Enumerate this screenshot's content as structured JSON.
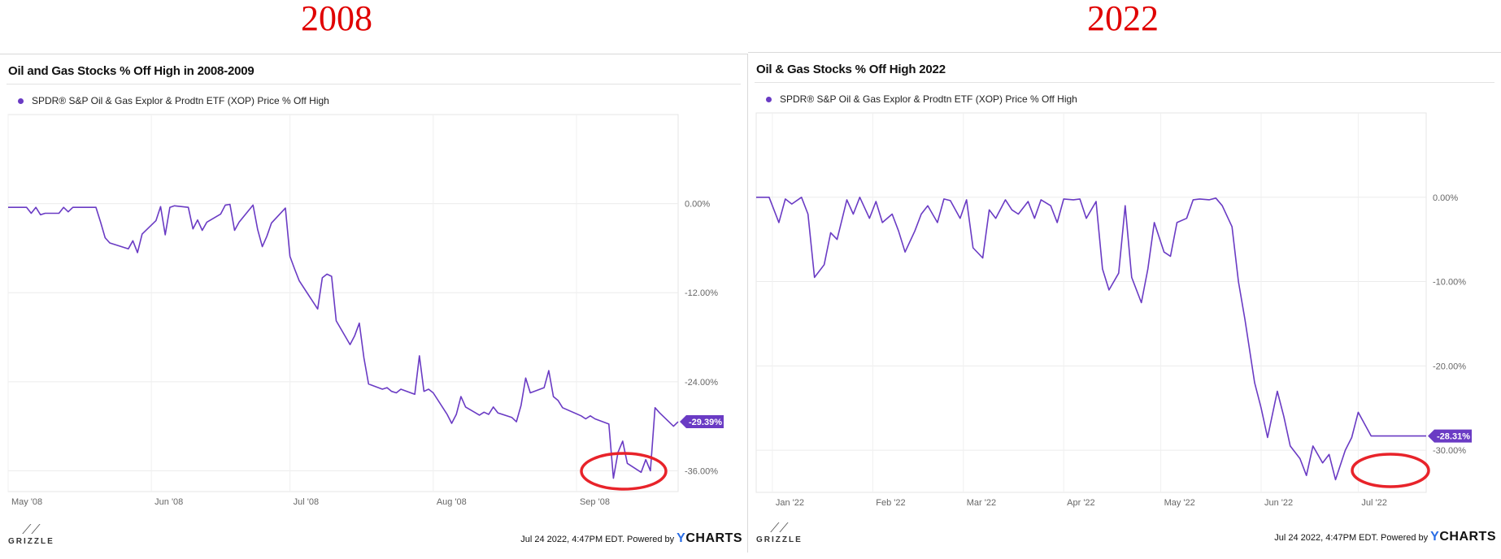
{
  "headers": {
    "left": "2008",
    "right": "2022"
  },
  "footer": {
    "logo_text": "GRIZZLE",
    "note": "Jul 24 2022, 4:47PM EDT. Powered by",
    "brand_y": "Y",
    "brand_rest": "CHARTS"
  },
  "colors": {
    "line": "#6a3bc4",
    "highlight": "#e8232a",
    "year": "#e00000"
  },
  "chart_data": [
    {
      "type": "line",
      "title": "Oil and Gas Stocks % Off High in 2008-2009",
      "legend": "SPDR® S&P Oil & Gas Explor & Prodtn ETF (XOP) Price % Off High",
      "x_start": "2008-05-01",
      "x_tick_labels": [
        "May '08",
        "Jun '08",
        "Jul '08",
        "Aug '08",
        "Sep '08"
      ],
      "x_tick_dates": [
        "2008-05-01",
        "2008-06-01",
        "2008-07-01",
        "2008-08-01",
        "2008-09-01"
      ],
      "y_ticks": [
        0,
        -12,
        -24,
        -36
      ],
      "y_tick_labels": [
        "0.00%",
        "-12.00%",
        "-24.00%",
        "-36.00%"
      ],
      "ylim": [
        -38.8,
        12.0
      ],
      "xlim": [
        "2008-05-01",
        "2008-09-23"
      ],
      "last_value_label": "-29.39%",
      "last_value": -29.39,
      "x": [
        "2008-05-01",
        "2008-05-02",
        "2008-05-05",
        "2008-05-06",
        "2008-05-07",
        "2008-05-08",
        "2008-05-09",
        "2008-05-12",
        "2008-05-13",
        "2008-05-14",
        "2008-05-15",
        "2008-05-16",
        "2008-05-19",
        "2008-05-20",
        "2008-05-21",
        "2008-05-22",
        "2008-05-23",
        "2008-05-27",
        "2008-05-28",
        "2008-05-29",
        "2008-05-30",
        "2008-06-02",
        "2008-06-03",
        "2008-06-04",
        "2008-06-05",
        "2008-06-06",
        "2008-06-09",
        "2008-06-10",
        "2008-06-11",
        "2008-06-12",
        "2008-06-13",
        "2008-06-16",
        "2008-06-17",
        "2008-06-18",
        "2008-06-19",
        "2008-06-20",
        "2008-06-23",
        "2008-06-24",
        "2008-06-25",
        "2008-06-26",
        "2008-06-27",
        "2008-06-30",
        "2008-07-01",
        "2008-07-02",
        "2008-07-03",
        "2008-07-07",
        "2008-07-08",
        "2008-07-09",
        "2008-07-10",
        "2008-07-11",
        "2008-07-14",
        "2008-07-15",
        "2008-07-16",
        "2008-07-17",
        "2008-07-18",
        "2008-07-21",
        "2008-07-22",
        "2008-07-23",
        "2008-07-24",
        "2008-07-25",
        "2008-07-28",
        "2008-07-29",
        "2008-07-30",
        "2008-07-31",
        "2008-08-01",
        "2008-08-04",
        "2008-08-05",
        "2008-08-06",
        "2008-08-07",
        "2008-08-08",
        "2008-08-11",
        "2008-08-12",
        "2008-08-13",
        "2008-08-14",
        "2008-08-15",
        "2008-08-18",
        "2008-08-19",
        "2008-08-20",
        "2008-08-21",
        "2008-08-22",
        "2008-08-25",
        "2008-08-26",
        "2008-08-27",
        "2008-08-28",
        "2008-08-29",
        "2008-09-02",
        "2008-09-03",
        "2008-09-04",
        "2008-09-05",
        "2008-09-08",
        "2008-09-09",
        "2008-09-10",
        "2008-09-11",
        "2008-09-12",
        "2008-09-15",
        "2008-09-16",
        "2008-09-17",
        "2008-09-18",
        "2008-09-19",
        "2008-09-22",
        "2008-09-23"
      ],
      "values": [
        -0.5,
        -0.5,
        -0.5,
        -1.3,
        -0.5,
        -1.5,
        -1.3,
        -1.3,
        -0.5,
        -1.1,
        -0.5,
        -0.5,
        -0.5,
        -0.5,
        -2.5,
        -4.6,
        -5.3,
        -6.1,
        -5.0,
        -6.6,
        -4.1,
        -2.3,
        -0.4,
        -4.2,
        -0.5,
        -0.3,
        -0.5,
        -3.4,
        -2.2,
        -3.6,
        -2.5,
        -1.4,
        -0.2,
        -0.1,
        -3.6,
        -2.5,
        -0.2,
        -3.5,
        -5.8,
        -4.4,
        -2.6,
        -0.6,
        -7.1,
        -8.8,
        -10.4,
        -14.2,
        -10.0,
        -9.5,
        -9.8,
        -15.8,
        -19.0,
        -17.8,
        -16.1,
        -20.8,
        -24.3,
        -25.0,
        -24.8,
        -25.3,
        -25.5,
        -25.0,
        -25.7,
        -20.5,
        -25.3,
        -25.0,
        -25.5,
        -28.4,
        -29.6,
        -28.4,
        -26.0,
        -27.4,
        -28.5,
        -28.1,
        -28.4,
        -27.4,
        -28.2,
        -28.8,
        -29.4,
        -27.2,
        -23.5,
        -25.5,
        -24.8,
        -22.5,
        -26.0,
        -26.5,
        -27.5,
        -28.6,
        -29.0,
        -28.6,
        -29.0,
        -29.7,
        -37.0,
        -33.5,
        -32.0,
        -35.0,
        -36.2,
        -34.5,
        -36.0,
        -27.5,
        -28.2,
        -30.0,
        -29.39
      ]
    },
    {
      "type": "line",
      "title": "Oil & Gas Stocks % Off High 2022",
      "legend": "SPDR® S&P Oil & Gas Explor & Prodtn ETF (XOP) Price % Off High",
      "x_tick_labels": [
        "Jan '22",
        "Feb '22",
        "Mar '22",
        "Apr '22",
        "May '22",
        "Jun '22",
        "Jul '22"
      ],
      "x_tick_dates": [
        "2022-01-01",
        "2022-02-01",
        "2022-03-01",
        "2022-04-01",
        "2022-05-01",
        "2022-06-01",
        "2022-07-01"
      ],
      "y_ticks": [
        0,
        -10,
        -20,
        -30
      ],
      "y_tick_labels": [
        "0.00%",
        "-10.00%",
        "-20.00%",
        "-30.00%"
      ],
      "ylim": [
        -35.0,
        10.0
      ],
      "xlim": [
        "2021-12-27",
        "2022-07-22"
      ],
      "last_value_label": "-28.31%",
      "last_value": -28.31,
      "x": [
        "2021-12-27",
        "2021-12-31",
        "2022-01-03",
        "2022-01-05",
        "2022-01-07",
        "2022-01-10",
        "2022-01-12",
        "2022-01-14",
        "2022-01-17",
        "2022-01-19",
        "2022-01-21",
        "2022-01-24",
        "2022-01-26",
        "2022-01-28",
        "2022-01-31",
        "2022-02-02",
        "2022-02-04",
        "2022-02-07",
        "2022-02-09",
        "2022-02-11",
        "2022-02-14",
        "2022-02-16",
        "2022-02-18",
        "2022-02-21",
        "2022-02-23",
        "2022-02-25",
        "2022-02-28",
        "2022-03-02",
        "2022-03-04",
        "2022-03-07",
        "2022-03-09",
        "2022-03-11",
        "2022-03-14",
        "2022-03-16",
        "2022-03-18",
        "2022-03-21",
        "2022-03-23",
        "2022-03-25",
        "2022-03-28",
        "2022-03-30",
        "2022-04-01",
        "2022-04-04",
        "2022-04-06",
        "2022-04-08",
        "2022-04-11",
        "2022-04-13",
        "2022-04-15",
        "2022-04-18",
        "2022-04-20",
        "2022-04-22",
        "2022-04-25",
        "2022-04-27",
        "2022-04-29",
        "2022-05-02",
        "2022-05-04",
        "2022-05-06",
        "2022-05-09",
        "2022-05-11",
        "2022-05-13",
        "2022-05-16",
        "2022-05-18",
        "2022-05-20",
        "2022-05-23",
        "2022-05-25",
        "2022-05-27",
        "2022-05-30",
        "2022-06-01",
        "2022-06-03",
        "2022-06-06",
        "2022-06-08",
        "2022-06-10",
        "2022-06-13",
        "2022-06-15",
        "2022-06-17",
        "2022-06-20",
        "2022-06-22",
        "2022-06-24",
        "2022-06-27",
        "2022-06-29",
        "2022-07-01",
        "2022-07-05",
        "2022-07-07",
        "2022-07-11",
        "2022-07-13",
        "2022-07-15",
        "2022-07-18",
        "2022-07-20",
        "2022-07-22"
      ],
      "values": [
        0,
        0,
        -3.0,
        -0.2,
        -0.8,
        0,
        -2.0,
        -9.5,
        -8.0,
        -4.2,
        -5.0,
        -0.3,
        -2.0,
        0,
        -2.5,
        -0.5,
        -3.0,
        -2.0,
        -4.0,
        -6.5,
        -4.0,
        -2.0,
        -1.0,
        -3.0,
        -0.2,
        -0.4,
        -2.5,
        -0.3,
        -6.0,
        -7.2,
        -1.5,
        -2.5,
        -0.3,
        -1.5,
        -2.0,
        -0.5,
        -2.5,
        -0.3,
        -1.0,
        -3.0,
        -0.2,
        -0.3,
        -0.2,
        -2.5,
        -0.5,
        -8.5,
        -11.0,
        -9.0,
        -1.0,
        -9.5,
        -12.5,
        -8.5,
        -3.0,
        -6.5,
        -7.0,
        -3.0,
        -2.5,
        -0.3,
        -0.2,
        -0.3,
        -0.1,
        -1.0,
        -3.5,
        -10.0,
        -14.5,
        -22.0,
        -25.0,
        -28.5,
        -23.0,
        -26.0,
        -29.5,
        -31.0,
        -33.0,
        -29.5,
        -31.5,
        -30.5,
        -33.5,
        -30.0,
        -28.5,
        -25.5,
        -28.31,
        -28.31,
        -28.31,
        -28.31,
        -28.31,
        -28.31,
        -28.31,
        -28.31
      ]
    }
  ]
}
